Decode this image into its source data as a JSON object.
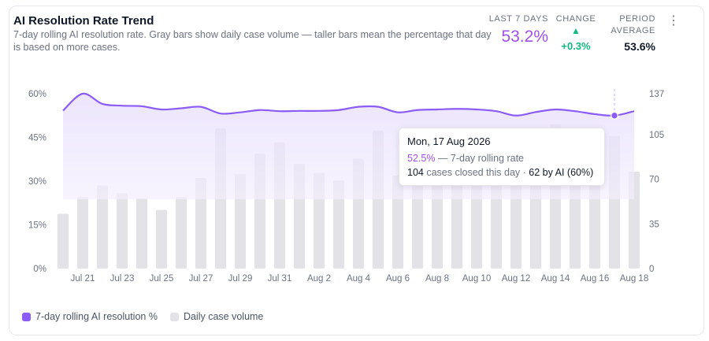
{
  "header": {
    "title": "AI Resolution Rate Trend",
    "subtitle": "7-day rolling AI resolution rate. Gray bars show daily case volume — taller bars mean the percentage that day is based on more cases."
  },
  "stats": {
    "last7_label": "LAST 7 DAYS",
    "last7_value": "53.2%",
    "change_label": "CHANGE",
    "change_arrow": "▲",
    "change_value": "+0.3%",
    "avg_label": "PERIOD AVERAGE",
    "avg_value": "53.6%"
  },
  "menu_icon": "⋮",
  "colors": {
    "line": "#8b5cf6",
    "area": "#ede5fd",
    "bar": "#e3e3e7",
    "accent_text": "#9f50e8",
    "positive": "#10b981"
  },
  "tooltip": {
    "date": "Mon, 17 Aug 2026",
    "rate": "52.5%",
    "rate_suffix": " — 7-day rolling rate",
    "cases": "104",
    "cases_suffix": " cases closed this day · ",
    "ai_cases": "62 by AI (60%)"
  },
  "legend": {
    "line_label": "7-day rolling AI resolution %",
    "bar_label": "Daily case volume"
  },
  "chart_data": {
    "type": "line",
    "x": [
      "Jul 20",
      "Jul 21",
      "Jul 22",
      "Jul 23",
      "Jul 24",
      "Jul 25",
      "Jul 26",
      "Jul 27",
      "Jul 28",
      "Jul 29",
      "Jul 30",
      "Jul 31",
      "Aug 1",
      "Aug 2",
      "Aug 3",
      "Aug 4",
      "Aug 5",
      "Aug 6",
      "Aug 7",
      "Aug 8",
      "Aug 9",
      "Aug 10",
      "Aug 11",
      "Aug 12",
      "Aug 13",
      "Aug 14",
      "Aug 15",
      "Aug 16",
      "Aug 17",
      "Aug 18"
    ],
    "x_tick_labels": [
      "Jul 21",
      "Jul 23",
      "Jul 25",
      "Jul 27",
      "Jul 29",
      "Jul 31",
      "Aug 2",
      "Aug 4",
      "Aug 6",
      "Aug 8",
      "Aug 10",
      "Aug 12",
      "Aug 14",
      "Aug 16",
      "Aug 18"
    ],
    "series": [
      {
        "name": "7-day rolling AI resolution %",
        "axis": "left",
        "values": [
          54.2,
          60.0,
          56.5,
          55.9,
          55.7,
          54.6,
          55.0,
          55.5,
          53.2,
          53.6,
          54.4,
          54.0,
          54.1,
          54.1,
          54.4,
          55.5,
          55.5,
          53.6,
          54.4,
          54.6,
          54.8,
          54.6,
          54.0,
          52.5,
          53.7,
          54.6,
          54.0,
          53.0,
          52.5,
          54.0
        ]
      },
      {
        "name": "Daily case volume",
        "axis": "right",
        "type": "bar",
        "values": [
          43,
          56,
          65,
          59,
          55,
          46,
          56,
          71,
          110,
          74,
          90,
          99,
          82,
          75,
          69,
          86,
          108,
          73,
          87,
          80,
          84,
          79,
          80,
          95,
          68,
          113,
          89,
          82,
          104,
          76
        ]
      }
    ],
    "y_left": {
      "ticks": [
        "0%",
        "15%",
        "30%",
        "45%",
        "60%"
      ],
      "range": [
        0,
        60
      ]
    },
    "y_right": {
      "ticks": [
        "0",
        "35",
        "70",
        "105",
        "137"
      ],
      "range": [
        0,
        137
      ]
    },
    "highlight": {
      "x": "Aug 17",
      "rate": 52.5,
      "cases": 104
    },
    "grid": false,
    "legend_position": "bottom-left"
  }
}
